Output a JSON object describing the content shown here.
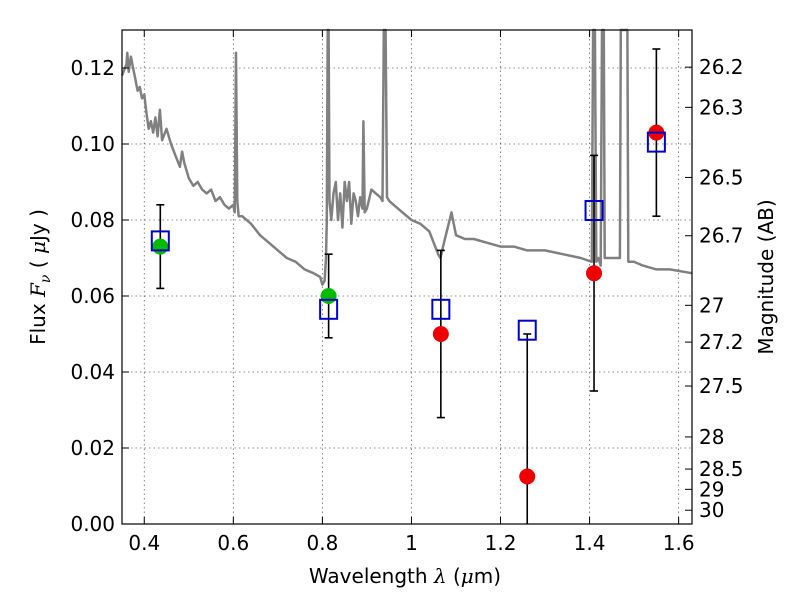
{
  "chart_data": {
    "type": "scatter",
    "xlabel": {
      "prefix": "Wavelength ",
      "symbol": "λ",
      "unit_open": " (",
      "unit_mu": "μ",
      "unit_rest": "m)"
    },
    "ylabel": {
      "prefix": "Flux ",
      "symbol": "F",
      "subscript": "ν",
      "unit_open": " ( ",
      "unit_mu": "μ",
      "unit_rest": "Jy )"
    },
    "y2label": "Magnitude (AB)",
    "xlim": [
      0.35,
      1.63
    ],
    "ylim": [
      0.0,
      0.13
    ],
    "grid": true,
    "x_ticks": [
      {
        "value": 0.4,
        "label": "0.4"
      },
      {
        "value": 0.6,
        "label": "0.6"
      },
      {
        "value": 0.8,
        "label": "0.8"
      },
      {
        "value": 1.0,
        "label": "1"
      },
      {
        "value": 1.2,
        "label": "1.2"
      },
      {
        "value": 1.4,
        "label": "1.4"
      },
      {
        "value": 1.6,
        "label": "1.6"
      }
    ],
    "y_ticks": [
      {
        "value": 0.0,
        "label": "0.00"
      },
      {
        "value": 0.02,
        "label": "0.02"
      },
      {
        "value": 0.04,
        "label": "0.04"
      },
      {
        "value": 0.06,
        "label": "0.06"
      },
      {
        "value": 0.08,
        "label": "0.08"
      },
      {
        "value": 0.1,
        "label": "0.10"
      },
      {
        "value": 0.12,
        "label": "0.12"
      }
    ],
    "y2_ticks": [
      {
        "mag": 26.2,
        "label": "26.2"
      },
      {
        "mag": 26.3,
        "label": "26.3"
      },
      {
        "mag": 26.5,
        "label": "26.5"
      },
      {
        "mag": 26.7,
        "label": "26.7"
      },
      {
        "mag": 27.0,
        "label": "27"
      },
      {
        "mag": 27.2,
        "label": "27.2"
      },
      {
        "mag": 27.5,
        "label": "27.5"
      },
      {
        "mag": 28.0,
        "label": "28"
      },
      {
        "mag": 28.5,
        "label": "28.5"
      },
      {
        "mag": 29.0,
        "label": "29"
      },
      {
        "mag": 30.0,
        "label": "30"
      }
    ],
    "model_spectrum": {
      "color": "#808080",
      "points": [
        [
          0.35,
          0.118
        ],
        [
          0.36,
          0.121
        ],
        [
          0.362,
          0.124
        ],
        [
          0.365,
          0.119
        ],
        [
          0.37,
          0.123
        ],
        [
          0.375,
          0.12
        ],
        [
          0.38,
          0.117
        ],
        [
          0.385,
          0.114
        ],
        [
          0.39,
          0.115
        ],
        [
          0.395,
          0.112
        ],
        [
          0.4,
          0.113
        ],
        [
          0.405,
          0.108
        ],
        [
          0.41,
          0.104
        ],
        [
          0.415,
          0.106
        ],
        [
          0.42,
          0.103
        ],
        [
          0.425,
          0.107
        ],
        [
          0.43,
          0.102
        ],
        [
          0.435,
          0.109
        ],
        [
          0.44,
          0.101
        ],
        [
          0.45,
          0.104
        ],
        [
          0.46,
          0.1
        ],
        [
          0.47,
          0.097
        ],
        [
          0.48,
          0.094
        ],
        [
          0.485,
          0.098
        ],
        [
          0.49,
          0.095
        ],
        [
          0.5,
          0.091
        ],
        [
          0.51,
          0.089
        ],
        [
          0.52,
          0.09
        ],
        [
          0.53,
          0.088
        ],
        [
          0.54,
          0.087
        ],
        [
          0.55,
          0.088
        ],
        [
          0.56,
          0.085
        ],
        [
          0.57,
          0.086
        ],
        [
          0.58,
          0.084
        ],
        [
          0.59,
          0.083
        ],
        [
          0.6,
          0.084
        ],
        [
          0.603,
          0.082
        ],
        [
          0.606,
          0.124
        ],
        [
          0.609,
          0.085
        ],
        [
          0.612,
          0.081
        ],
        [
          0.62,
          0.081
        ],
        [
          0.64,
          0.079
        ],
        [
          0.66,
          0.076
        ],
        [
          0.68,
          0.074
        ],
        [
          0.7,
          0.072
        ],
        [
          0.72,
          0.07
        ],
        [
          0.74,
          0.069
        ],
        [
          0.76,
          0.067
        ],
        [
          0.78,
          0.066
        ],
        [
          0.795,
          0.065
        ],
        [
          0.8,
          0.063
        ],
        [
          0.805,
          0.064
        ],
        [
          0.808,
          0.07
        ],
        [
          0.81,
          0.08
        ],
        [
          0.812,
          0.13
        ],
        [
          0.814,
          0.13
        ],
        [
          0.816,
          0.085
        ],
        [
          0.82,
          0.08
        ],
        [
          0.825,
          0.087
        ],
        [
          0.83,
          0.09
        ],
        [
          0.835,
          0.08
        ],
        [
          0.84,
          0.087
        ],
        [
          0.845,
          0.078
        ],
        [
          0.85,
          0.09
        ],
        [
          0.855,
          0.085
        ],
        [
          0.86,
          0.09
        ],
        [
          0.865,
          0.079
        ],
        [
          0.87,
          0.087
        ],
        [
          0.875,
          0.085
        ],
        [
          0.88,
          0.081
        ],
        [
          0.885,
          0.086
        ],
        [
          0.89,
          0.083
        ],
        [
          0.892,
          0.106
        ],
        [
          0.895,
          0.082
        ],
        [
          0.9,
          0.083
        ],
        [
          0.91,
          0.088
        ],
        [
          0.92,
          0.087
        ],
        [
          0.93,
          0.086
        ],
        [
          0.935,
          0.085
        ],
        [
          0.938,
          0.13
        ],
        [
          0.942,
          0.13
        ],
        [
          0.945,
          0.086
        ],
        [
          0.95,
          0.085
        ],
        [
          0.96,
          0.084
        ],
        [
          0.98,
          0.082
        ],
        [
          1.0,
          0.08
        ],
        [
          1.02,
          0.079
        ],
        [
          1.04,
          0.077
        ],
        [
          1.05,
          0.074
        ],
        [
          1.06,
          0.071
        ],
        [
          1.065,
          0.07
        ],
        [
          1.075,
          0.075
        ],
        [
          1.09,
          0.082
        ],
        [
          1.1,
          0.076
        ],
        [
          1.12,
          0.075
        ],
        [
          1.14,
          0.075
        ],
        [
          1.17,
          0.074
        ],
        [
          1.2,
          0.073
        ],
        [
          1.23,
          0.073
        ],
        [
          1.26,
          0.072
        ],
        [
          1.3,
          0.072
        ],
        [
          1.34,
          0.071
        ],
        [
          1.38,
          0.07
        ],
        [
          1.405,
          0.069
        ],
        [
          1.408,
          0.13
        ],
        [
          1.412,
          0.13
        ],
        [
          1.415,
          0.069
        ],
        [
          1.42,
          0.07
        ],
        [
          1.425,
          0.068
        ],
        [
          1.428,
          0.13
        ],
        [
          1.432,
          0.13
        ],
        [
          1.434,
          0.07
        ],
        [
          1.44,
          0.07
        ],
        [
          1.46,
          0.07
        ],
        [
          1.468,
          0.07
        ],
        [
          1.47,
          0.13
        ],
        [
          1.485,
          0.13
        ],
        [
          1.487,
          0.069
        ],
        [
          1.5,
          0.069
        ],
        [
          1.52,
          0.068
        ],
        [
          1.55,
          0.067
        ],
        [
          1.58,
          0.067
        ],
        [
          1.63,
          0.066
        ]
      ]
    },
    "series": [
      {
        "marker": "circle",
        "color": "#00bb00",
        "points": [
          {
            "x": 0.436,
            "y": 0.073,
            "yerr_low": 0.062,
            "yerr_high": 0.084
          },
          {
            "x": 0.814,
            "y": 0.06,
            "yerr_low": 0.049,
            "yerr_high": 0.071
          }
        ]
      },
      {
        "marker": "circle",
        "color": "#ee0000",
        "points": [
          {
            "x": 1.066,
            "y": 0.05,
            "yerr_low": 0.028,
            "yerr_high": 0.072
          },
          {
            "x": 1.26,
            "y": 0.0125,
            "yerr_low": 0.0,
            "yerr_high": 0.05
          },
          {
            "x": 1.41,
            "y": 0.066,
            "yerr_low": 0.035,
            "yerr_high": 0.097
          },
          {
            "x": 1.55,
            "y": 0.103,
            "yerr_low": 0.081,
            "yerr_high": 0.125
          }
        ]
      },
      {
        "marker": "square-open",
        "color": "#0000cc",
        "points": [
          {
            "x": 0.436,
            "y": 0.0745
          },
          {
            "x": 0.814,
            "y": 0.0565
          },
          {
            "x": 1.066,
            "y": 0.0565
          },
          {
            "x": 1.26,
            "y": 0.051
          },
          {
            "x": 1.41,
            "y": 0.0825
          },
          {
            "x": 1.55,
            "y": 0.1005
          }
        ]
      }
    ]
  }
}
